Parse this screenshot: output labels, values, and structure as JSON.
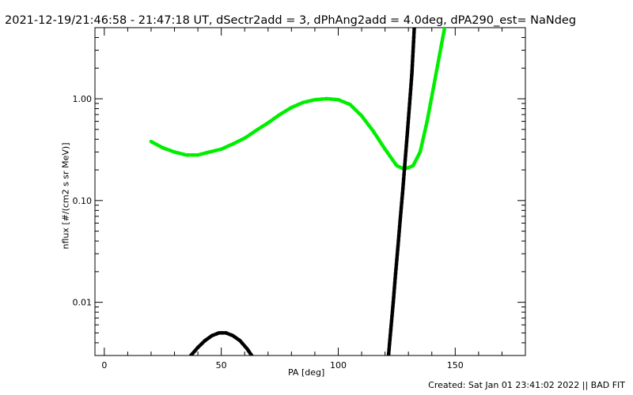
{
  "title": "2021-12-19/21:46:58 - 21:47:18 UT, dSectr2add = 3, dPhAng2add = 4.0deg, dPA290_est=  NaNdeg",
  "footer": "Created: Sat Jan 01 23:41:02 2022 || BAD FIT",
  "chart_data": {
    "type": "scatter",
    "xlabel": "PA [deg]",
    "ylabel": "nflux [#/(cm2 s sr MeV)]",
    "xlim": [
      -4,
      180
    ],
    "ylim": [
      0.003,
      5.0
    ],
    "yscale": "log",
    "xticks": [
      {
        "value": 0,
        "label": "0"
      },
      {
        "value": 50,
        "label": "50"
      },
      {
        "value": 100,
        "label": "100"
      },
      {
        "value": 150,
        "label": "150"
      }
    ],
    "yticks": [
      {
        "value": 0.01,
        "label": "0.01"
      },
      {
        "value": 0.1,
        "label": "0.10"
      },
      {
        "value": 1.0,
        "label": "1.00"
      }
    ],
    "series": [
      {
        "color": "#00ee00",
        "marker": "dashed-dots",
        "x": [
          20,
          25,
          30,
          35,
          40,
          45,
          50,
          55,
          60,
          65,
          70,
          75,
          80,
          85,
          90,
          95,
          100,
          105,
          110,
          115,
          120,
          125,
          128,
          130,
          132,
          135,
          138,
          141,
          144,
          145.5
        ],
        "y": [
          0.38,
          0.33,
          0.3,
          0.28,
          0.28,
          0.3,
          0.32,
          0.36,
          0.41,
          0.49,
          0.58,
          0.7,
          0.82,
          0.92,
          0.98,
          1.0,
          0.98,
          0.88,
          0.68,
          0.48,
          0.32,
          0.22,
          0.205,
          0.21,
          0.22,
          0.3,
          0.6,
          1.4,
          3.3,
          5.0
        ]
      },
      {
        "color": "#000000",
        "marker": "dashed-dots",
        "x": [
          37,
          40,
          43,
          46,
          49,
          52,
          55,
          58,
          61,
          63
        ],
        "y": [
          0.003,
          0.0036,
          0.0042,
          0.0047,
          0.005,
          0.005,
          0.0047,
          0.0042,
          0.0035,
          0.003
        ]
      },
      {
        "color": "#000000",
        "marker": "dashed-dots",
        "x": [
          121.5,
          122.5,
          123.5,
          124.5,
          125.5,
          126.5,
          127.5,
          128.5,
          129.5,
          130.5,
          131.5,
          132.5
        ],
        "y": [
          0.003,
          0.0055,
          0.01,
          0.019,
          0.035,
          0.065,
          0.12,
          0.23,
          0.45,
          0.9,
          1.8,
          5.0
        ]
      }
    ]
  }
}
